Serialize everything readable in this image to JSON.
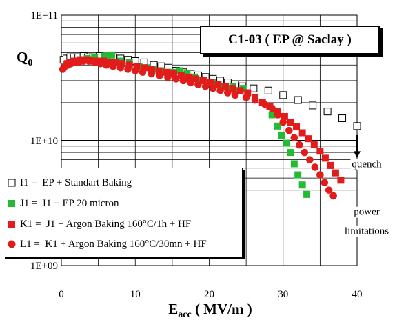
{
  "chart_data": {
    "type": "scatter",
    "title": "C1-03 ( EP @ Saclay )",
    "ylabel_main": "Q",
    "ylabel_sub": "0",
    "xlabel_main": "E",
    "xlabel_sub": "acc",
    "xlabel_unit": " ( MV/m )",
    "xlim": [
      0,
      40
    ],
    "x_ticks": [
      0,
      10,
      20,
      30,
      40
    ],
    "ylim": [
      1000000000,
      100000000000
    ],
    "y_scale": "log",
    "y_ticks": [
      "1E+09",
      "1E+10",
      "1E+11"
    ],
    "grid": "on (major and minor)",
    "legend_placement": "lower-left",
    "series": [
      {
        "name": "I1 =  EP + Standart Baking",
        "marker": "open-square",
        "color": "#000000",
        "x": [
          0.3,
          0.7,
          1.2,
          1.7,
          2.3,
          3.0,
          3.6,
          4.3,
          5.2,
          6.0,
          7.0,
          8.0,
          9.0,
          10.0,
          11.2,
          12.5,
          13.5,
          14.5,
          15.5,
          16.5,
          17.5,
          18.5,
          19.5,
          20.5,
          21.5,
          22.5,
          23.5,
          24.5,
          26.0,
          28.0,
          30.0,
          32.0,
          34.0,
          36.0,
          38.0,
          40.0
        ],
        "y": [
          44000000000.0,
          45000000000.0,
          46000000000.0,
          46000000000.0,
          46000000000.0,
          47000000000.0,
          46000000000.0,
          46000000000.0,
          47000000000.0,
          46000000000.0,
          46000000000.0,
          45000000000.0,
          44000000000.0,
          43000000000.0,
          42000000000.0,
          40000000000.0,
          39000000000.0,
          38000000000.0,
          36000000000.0,
          35000000000.0,
          34000000000.0,
          33000000000.0,
          32000000000.0,
          31000000000.0,
          30000000000.0,
          29000000000.0,
          28000000000.0,
          27000000000.0,
          26000000000.0,
          25000000000.0,
          23000000000.0,
          21000000000.0,
          19000000000.0,
          17000000000.0,
          15000000000.0,
          13000000000.0
        ]
      },
      {
        "name": "J1 =  I1 + EP 20 micron",
        "marker": "filled-square",
        "color": "#22bb33",
        "x": [
          0.7,
          1.5,
          2.5,
          3.5,
          4.5,
          5.8,
          6.8,
          8.0,
          9.2,
          10.5,
          11.5,
          12.5,
          13.5,
          15.0,
          16.0,
          17.0,
          18.0,
          19.0,
          20.5,
          21.5,
          22.5,
          23.2,
          24.0,
          24.6,
          28.5,
          29.2,
          29.8,
          30.4,
          31.0,
          31.5,
          32.0,
          32.6,
          33.2
        ],
        "y": [
          40000000000.0,
          42000000000.0,
          44000000000.0,
          45000000000.0,
          46000000000.0,
          47000000000.0,
          48000000000.0,
          43000000000.0,
          42000000000.0,
          39000000000.0,
          38000000000.0,
          37000000000.0,
          36000000000.0,
          35000000000.0,
          36000000000.0,
          34000000000.0,
          32000000000.0,
          30000000000.0,
          29000000000.0,
          27000000000.0,
          26000000000.0,
          27000000000.0,
          25000000000.0,
          26000000000.0,
          16000000000.0,
          13000000000.0,
          11000000000.0,
          9500000000.0,
          8000000000.0,
          6500000000.0,
          5300000000.0,
          4400000000.0,
          3700000000.0
        ]
      },
      {
        "name": "K1 =  J1 + Argon Baking 160°C/1h + HF",
        "marker": "filled-square",
        "color": "#e21b1b",
        "x": [
          0.8,
          1.2,
          1.6,
          2.1,
          2.6,
          3.1,
          3.7,
          4.3,
          5.0,
          5.7,
          6.5,
          7.3,
          8.2,
          9.2,
          10.2,
          11.2,
          12.2,
          13.2,
          14.2,
          15.2,
          16.2,
          17.2,
          18.2,
          19.2,
          20.2,
          21.2,
          22.2,
          23.2,
          24.2,
          25.2,
          26.2,
          27.2,
          28.2,
          29.2,
          30.2,
          31.0,
          31.8,
          32.6,
          33.4,
          34.2,
          35.0,
          35.7,
          36.4,
          37.1,
          37.8
        ],
        "y": [
          41000000000.0,
          42000000000.0,
          43000000000.0,
          43000000000.0,
          44000000000.0,
          44000000000.0,
          44000000000.0,
          43000000000.0,
          43000000000.0,
          43000000000.0,
          42000000000.0,
          42000000000.0,
          41000000000.0,
          40000000000.0,
          39000000000.0,
          38000000000.0,
          37000000000.0,
          36000000000.0,
          35000000000.0,
          34000000000.0,
          33000000000.0,
          32000000000.0,
          31000000000.0,
          30000000000.0,
          29000000000.0,
          28000000000.0,
          27000000000.0,
          26000000000.0,
          25000000000.0,
          24000000000.0,
          22000000000.0,
          20000000000.0,
          18500000000.0,
          17000000000.0,
          15500000000.0,
          14000000000.0,
          12800000000.0,
          11500000000.0,
          10300000000.0,
          9200000000.0,
          8200000000.0,
          7200000000.0,
          6300000000.0,
          5500000000.0,
          4800000000.0
        ]
      },
      {
        "name": "L1 =  K1 + Argon Baking 160°C/30mn + HF",
        "marker": "filled-circle",
        "color": "#e21b1b",
        "x": [
          0.2,
          0.5,
          0.9,
          1.3,
          1.8,
          2.4,
          3.0,
          3.7,
          4.5,
          5.3,
          6.1,
          7.0,
          8.0,
          9.0,
          10.0,
          11.0,
          12.2,
          13.3,
          14.4,
          15.5,
          16.5,
          17.5,
          18.5,
          19.5,
          20.5,
          21.5,
          22.5,
          23.5,
          25.0,
          26.2,
          27.5,
          28.5,
          29.3,
          30.0,
          30.8,
          31.5,
          32.2,
          32.9,
          33.6,
          34.3,
          35.0,
          35.6,
          36.2,
          36.8
        ],
        "y": [
          37000000000.0,
          39000000000.0,
          40000000000.0,
          41000000000.0,
          42000000000.0,
          42000000000.0,
          43000000000.0,
          43000000000.0,
          42000000000.0,
          41000000000.0,
          40000000000.0,
          39000000000.0,
          38000000000.0,
          37000000000.0,
          36000000000.0,
          35000000000.0,
          34000000000.0,
          33000000000.0,
          32000000000.0,
          31000000000.0,
          30000000000.0,
          29000000000.0,
          28000000000.0,
          27000000000.0,
          26000000000.0,
          25000000000.0,
          24000000000.0,
          23000000000.0,
          22000000000.0,
          21000000000.0,
          19500000000.0,
          18000000000.0,
          16000000000.0,
          14000000000.0,
          12000000000.0,
          10500000000.0,
          9200000000.0,
          8000000000.0,
          7000000000.0,
          6100000000.0,
          5300000000.0,
          4600000000.0,
          4000000000.0,
          3600000000.0
        ]
      }
    ],
    "annotations": [
      {
        "text": "quench",
        "x": 40,
        "y": 6500000000.0,
        "arrow_from_y": 12500000000.0,
        "arrow_to_y": 7200000000.0
      },
      {
        "text": "power",
        "x": 40,
        "y": 2700000000.0
      },
      {
        "text": "limitations",
        "x": 40,
        "y": 1900000000.0
      }
    ]
  }
}
